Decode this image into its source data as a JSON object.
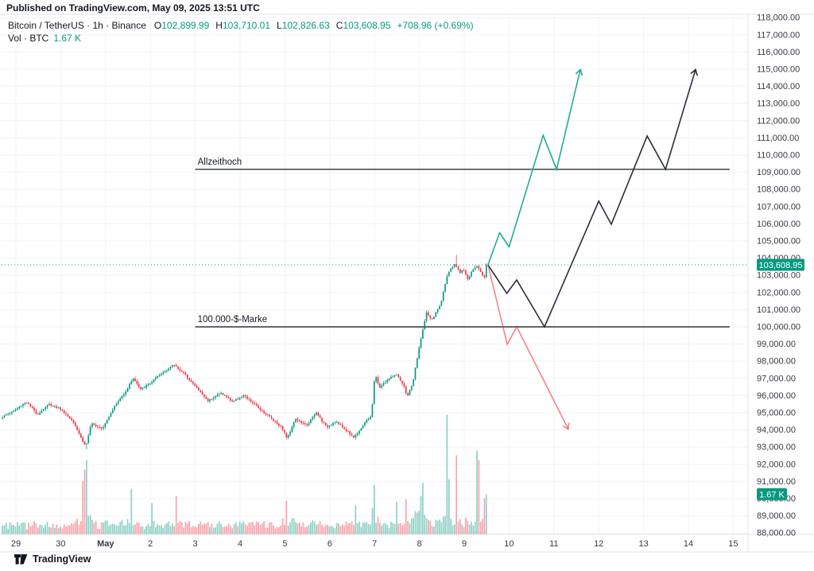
{
  "header": {
    "published": "Published on TradingView.com, May 09, 2025 13:51 UTC"
  },
  "legend": {
    "symbol": "Bitcoin / TetherUS · 1h · Binance",
    "o_label": "O",
    "o": "102,899.99",
    "h_label": "H",
    "h": "103,710.01",
    "l_label": "L",
    "l": "102,826.63",
    "c_label": "C",
    "c": "103,608.95",
    "change": "+708.96 (+0.69%)",
    "vol_label": "Vol · BTC",
    "vol_value": "1.67 K"
  },
  "footer": {
    "brand": "TradingView"
  },
  "colors": {
    "up": "#089981",
    "down": "#F23645",
    "vol_up": "rgba(8,153,129,0.45)",
    "vol_down": "rgba(242,54,69,0.45)",
    "teal_line": "#22AB94",
    "black_line": "#2A2E39",
    "red_line": "rgba(242,54,69,0.62)",
    "level_line": "#4C5058",
    "grid": "#F0F3FA",
    "frame": "#E0E3EB",
    "axis_text": "#363A45",
    "text": "#131722",
    "badge_bg": "#089981",
    "badge_text": "#FFFFFF",
    "price_dotted": "#089981"
  },
  "chart_data": {
    "type": "candlestick",
    "title": "Bitcoin / TetherUS · 1h · Binance",
    "x_axis": {
      "labels": [
        {
          "t": 0,
          "label": "29",
          "bold": false
        },
        {
          "t": 1,
          "label": "30",
          "bold": false
        },
        {
          "t": 2,
          "label": "May",
          "bold": true
        },
        {
          "t": 3,
          "label": "2",
          "bold": false
        },
        {
          "t": 4,
          "label": "3",
          "bold": false
        },
        {
          "t": 5,
          "label": "4",
          "bold": false
        },
        {
          "t": 6,
          "label": "5",
          "bold": false
        },
        {
          "t": 7,
          "label": "6",
          "bold": false
        },
        {
          "t": 8,
          "label": "7",
          "bold": false
        },
        {
          "t": 9,
          "label": "8",
          "bold": false
        },
        {
          "t": 10,
          "label": "9",
          "bold": false
        },
        {
          "t": 11,
          "label": "10",
          "bold": false
        },
        {
          "t": 12,
          "label": "11",
          "bold": false
        },
        {
          "t": 13,
          "label": "12",
          "bold": false
        },
        {
          "t": 14,
          "label": "13",
          "bold": false
        },
        {
          "t": 15,
          "label": "14",
          "bold": false
        },
        {
          "t": 16,
          "label": "15",
          "bold": false
        }
      ]
    },
    "y_axis": {
      "min": 88000,
      "max": 118000,
      "step": 1000
    },
    "current_bar": {
      "open": 102899.99,
      "high": 103710.01,
      "low": 102826.63,
      "close": 103608.95,
      "change_text": "+708.96 (+0.69%)",
      "volume_k_btc": 1.67
    },
    "current_price_line": {
      "price": 103608.95,
      "badge_label": "103,608.95"
    },
    "volume_badge": {
      "label": "1.67 K",
      "k_btc": 1.67
    },
    "levels": [
      {
        "id": "ath",
        "label": "Allzeithoch",
        "price": 109170,
        "t_start": 4.0,
        "t_end": 15.92
      },
      {
        "id": "100k",
        "label": "100.000-$-Marke",
        "price": 100000,
        "t_start": 4.0,
        "t_end": 15.92
      }
    ],
    "projections": [
      {
        "id": "bullish-scenario-teal",
        "color_key": "teal_line",
        "points": [
          [
            10.53,
            103608.95
          ],
          [
            10.79,
            105480
          ],
          [
            11.0,
            104660
          ],
          [
            11.76,
            111150
          ],
          [
            12.06,
            109170
          ],
          [
            12.59,
            114980
          ]
        ]
      },
      {
        "id": "bullish-scenario-black",
        "color_key": "black_line",
        "points": [
          [
            10.53,
            103608.95
          ],
          [
            10.95,
            101950
          ],
          [
            11.17,
            102730
          ],
          [
            11.79,
            100000
          ],
          [
            13.0,
            107320
          ],
          [
            13.28,
            105970
          ],
          [
            14.08,
            111110
          ],
          [
            14.49,
            109170
          ],
          [
            15.16,
            114980
          ]
        ]
      },
      {
        "id": "bearish-scenario-red",
        "color_key": "red_line",
        "points": [
          [
            10.53,
            103608.95
          ],
          [
            10.96,
            98980
          ],
          [
            11.17,
            100000
          ],
          [
            12.32,
            94050
          ]
        ]
      }
    ],
    "approx_price_path": [
      [
        -0.32,
        94700
      ],
      [
        0,
        95150
      ],
      [
        0.25,
        95650
      ],
      [
        0.5,
        94900
      ],
      [
        0.75,
        95500
      ],
      [
        1,
        95250
      ],
      [
        1.3,
        94500
      ],
      [
        1.5,
        93400
      ],
      [
        1.58,
        93050
      ],
      [
        1.7,
        94350
      ],
      [
        1.95,
        94100
      ],
      [
        2.2,
        95300
      ],
      [
        2.5,
        96350
      ],
      [
        2.63,
        97050
      ],
      [
        2.8,
        96350
      ],
      [
        3,
        96700
      ],
      [
        3.3,
        97350
      ],
      [
        3.55,
        97800
      ],
      [
        3.8,
        97200
      ],
      [
        4,
        96600
      ],
      [
        4.3,
        95700
      ],
      [
        4.6,
        96150
      ],
      [
        4.85,
        95650
      ],
      [
        5.1,
        96000
      ],
      [
        5.45,
        95250
      ],
      [
        5.75,
        94600
      ],
      [
        5.95,
        94150
      ],
      [
        6.07,
        93500
      ],
      [
        6.25,
        94650
      ],
      [
        6.5,
        94250
      ],
      [
        6.72,
        95000
      ],
      [
        6.95,
        94150
      ],
      [
        7.15,
        94500
      ],
      [
        7.4,
        93950
      ],
      [
        7.56,
        93550
      ],
      [
        7.8,
        94400
      ],
      [
        7.95,
        94850
      ],
      [
        8.03,
        97300
      ],
      [
        8.12,
        96450
      ],
      [
        8.3,
        96900
      ],
      [
        8.5,
        97250
      ],
      [
        8.68,
        96500
      ],
      [
        8.75,
        95950
      ],
      [
        8.87,
        96700
      ],
      [
        9.05,
        99300
      ],
      [
        9.18,
        100800
      ],
      [
        9.3,
        100400
      ],
      [
        9.5,
        101350
      ],
      [
        9.63,
        102950
      ],
      [
        9.72,
        103350
      ],
      [
        9.82,
        103650
      ],
      [
        9.92,
        103150
      ],
      [
        10,
        103400
      ],
      [
        10.1,
        102750
      ],
      [
        10.22,
        103350
      ],
      [
        10.32,
        103550
      ],
      [
        10.42,
        103050
      ],
      [
        10.49,
        102899.99
      ],
      [
        10.53,
        103608.95
      ]
    ],
    "extremes": {
      "flash_low_t": 1.58,
      "flash_low_price": 92880,
      "spike_high_t": 9.82,
      "spike_high_price": 104180
    },
    "volume_spikes_k_btc": [
      [
        1.5,
        2.2
      ],
      [
        1.54,
        2.7
      ],
      [
        1.58,
        3.1
      ],
      [
        2.58,
        1.9
      ],
      [
        3.05,
        1.3
      ],
      [
        3.58,
        1.6
      ],
      [
        6.04,
        1.4
      ],
      [
        7.58,
        1.2
      ],
      [
        7.99,
        2.05
      ],
      [
        8.49,
        1.35
      ],
      [
        8.72,
        1.45
      ],
      [
        9.03,
        1.6
      ],
      [
        9.07,
        2.15
      ],
      [
        9.62,
        5.0
      ],
      [
        9.66,
        2.3
      ],
      [
        9.83,
        3.3
      ],
      [
        10.27,
        3.5
      ],
      [
        10.31,
        3.1
      ],
      [
        10.45,
        1.5
      ],
      [
        10.49,
        1.8
      ]
    ]
  }
}
